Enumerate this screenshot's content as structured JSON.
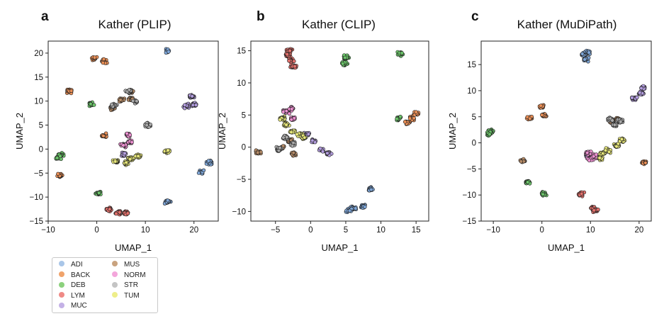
{
  "chart_data": [
    {
      "type": "scatter",
      "panel_label": "a",
      "title": "Kather (PLIP)",
      "xlabel": "UMAP_1",
      "ylabel": "UMAP_2",
      "xlim": [
        -10,
        25
      ],
      "ylim": [
        -15,
        22.5
      ],
      "xticks": [
        -10,
        0,
        10,
        20
      ],
      "yticks": [
        -15,
        -10,
        -5,
        0,
        5,
        10,
        15,
        20
      ],
      "clusters": [
        {
          "class": "ADI",
          "points": [
            [
              14.5,
              20.5
            ],
            [
              21.5,
              -4.8
            ],
            [
              23.2,
              -2.8
            ],
            [
              14.5,
              -11
            ]
          ]
        },
        {
          "class": "BACK",
          "points": [
            [
              -0.5,
              19.0
            ],
            [
              1.5,
              18.2
            ],
            [
              -5.8,
              12.0
            ],
            [
              -7.5,
              -5.5
            ],
            [
              1.5,
              2.8
            ]
          ]
        },
        {
          "class": "DEB",
          "points": [
            [
              -1.2,
              9.3
            ],
            [
              -8.0,
              -1.8
            ],
            [
              -7.2,
              -1.2
            ],
            [
              0.3,
              -9.2
            ]
          ]
        },
        {
          "class": "LYM",
          "points": [
            [
              2.5,
              -12.6
            ],
            [
              4.5,
              -13.2
            ],
            [
              6.0,
              -13.3
            ]
          ]
        },
        {
          "class": "MUC",
          "points": [
            [
              18.5,
              9.0
            ],
            [
              20.0,
              9.3
            ],
            [
              19.5,
              11.0
            ],
            [
              5.5,
              -1.0
            ]
          ]
        },
        {
          "class": "MUS",
          "points": [
            [
              5.0,
              10.3
            ],
            [
              7.0,
              10.4
            ],
            [
              3.2,
              8.5
            ],
            [
              7.0,
              12.0
            ]
          ]
        },
        {
          "class": "NORM",
          "points": [
            [
              6.5,
              3.0
            ],
            [
              6.8,
              1.5
            ],
            [
              5.5,
              0.8
            ]
          ]
        },
        {
          "class": "STR",
          "points": [
            [
              8.0,
              10.0
            ],
            [
              3.5,
              9.0
            ],
            [
              10.5,
              5.0
            ],
            [
              6.5,
              12.0
            ]
          ]
        },
        {
          "class": "TUM",
          "points": [
            [
              7.0,
              -2.0
            ],
            [
              8.5,
              -1.5
            ],
            [
              6.0,
              -3.0
            ],
            [
              4.0,
              -2.5
            ],
            [
              14.5,
              -0.5
            ]
          ]
        }
      ]
    },
    {
      "type": "scatter",
      "panel_label": "b",
      "title": "Kather (CLIP)",
      "xlabel": "UMAP_1",
      "ylabel": "UMAP_2",
      "xlim": [
        -8.5,
        16.8
      ],
      "ylim": [
        -11.5,
        16.5
      ],
      "xticks": [
        -5,
        0,
        5,
        10,
        15
      ],
      "yticks": [
        -10,
        -5,
        0,
        5,
        10,
        15
      ],
      "clusters": [
        {
          "class": "ADI",
          "points": [
            [
              6.0,
              -9.5
            ],
            [
              7.5,
              -9.2
            ],
            [
              5.5,
              -9.8
            ],
            [
              8.5,
              -6.5
            ]
          ]
        },
        {
          "class": "BACK",
          "points": [
            [
              14.5,
              4.5
            ],
            [
              15.0,
              5.2
            ],
            [
              13.8,
              3.8
            ]
          ]
        },
        {
          "class": "DEB",
          "points": [
            [
              5.0,
              14.0
            ],
            [
              4.8,
              13.0
            ],
            [
              12.8,
              14.5
            ],
            [
              12.5,
              4.5
            ]
          ]
        },
        {
          "class": "LYM",
          "points": [
            [
              -3.0,
              15.0
            ],
            [
              -2.8,
              13.5
            ],
            [
              -3.2,
              14.2
            ],
            [
              -2.5,
              12.5
            ]
          ]
        },
        {
          "class": "MUC",
          "points": [
            [
              1.5,
              -0.5
            ],
            [
              2.5,
              -1.0
            ],
            [
              0.5,
              1.0
            ],
            [
              -0.5,
              2.0
            ]
          ]
        },
        {
          "class": "MUS",
          "points": [
            [
              -4.0,
              0.0
            ],
            [
              -2.5,
              -1.0
            ],
            [
              -3.0,
              1.0
            ],
            [
              -7.5,
              -0.8
            ]
          ]
        },
        {
          "class": "NORM",
          "points": [
            [
              -3.5,
              5.5
            ],
            [
              -2.8,
              6.0
            ],
            [
              -2.5,
              4.5
            ]
          ]
        },
        {
          "class": "STR",
          "points": [
            [
              -4.5,
              -0.3
            ],
            [
              -3.5,
              1.5
            ],
            [
              -2.5,
              0.5
            ]
          ]
        },
        {
          "class": "TUM",
          "points": [
            [
              -3.5,
              3.5
            ],
            [
              -2.5,
              2.5
            ],
            [
              -4.0,
              4.5
            ],
            [
              -1.5,
              2.0
            ],
            [
              -1.0,
              1.5
            ]
          ]
        }
      ]
    },
    {
      "type": "scatter",
      "panel_label": "c",
      "title": "Kather (MuDiPath)",
      "xlabel": "UMAP_1",
      "ylabel": "UMAP_2",
      "xlim": [
        -12.5,
        22.5
      ],
      "ylim": [
        -15,
        19.5
      ],
      "xticks": [
        -10,
        0,
        10,
        20
      ],
      "yticks": [
        -15,
        -10,
        -5,
        0,
        5,
        10,
        15
      ],
      "clusters": [
        {
          "class": "ADI",
          "points": [
            [
              8.5,
              17.0
            ],
            [
              9.5,
              17.3
            ],
            [
              9.0,
              16.0
            ]
          ]
        },
        {
          "class": "BACK",
          "points": [
            [
              -2.5,
              4.8
            ],
            [
              0.0,
              7.0
            ],
            [
              0.5,
              5.2
            ],
            [
              21.0,
              -3.8
            ]
          ]
        },
        {
          "class": "DEB",
          "points": [
            [
              -10.5,
              2.2
            ],
            [
              -10.8,
              1.8
            ],
            [
              -3.0,
              -7.5
            ],
            [
              0.5,
              -9.8
            ]
          ]
        },
        {
          "class": "LYM",
          "points": [
            [
              8.0,
              -9.8
            ],
            [
              10.5,
              -12.5
            ],
            [
              11.0,
              -13.0
            ]
          ]
        },
        {
          "class": "MUC",
          "points": [
            [
              19.0,
              8.5
            ],
            [
              20.5,
              9.5
            ],
            [
              20.8,
              10.5
            ],
            [
              9.5,
              -2.5
            ]
          ]
        },
        {
          "class": "MUS",
          "points": [
            [
              -4.0,
              -3.5
            ],
            [
              14.5,
              4.0
            ],
            [
              15.5,
              4.5
            ]
          ]
        },
        {
          "class": "NORM",
          "points": [
            [
              9.5,
              -2.0
            ],
            [
              10.0,
              -3.0
            ],
            [
              11.0,
              -2.5
            ]
          ]
        },
        {
          "class": "STR",
          "points": [
            [
              14.0,
              4.5
            ],
            [
              16.0,
              4.2
            ],
            [
              15.0,
              3.5
            ]
          ]
        },
        {
          "class": "TUM",
          "points": [
            [
              12.5,
              -2.0
            ],
            [
              13.5,
              -1.5
            ],
            [
              12.0,
              -3.0
            ],
            [
              15.5,
              -0.5
            ],
            [
              16.5,
              0.5
            ]
          ]
        }
      ]
    }
  ],
  "legend": {
    "entries": [
      {
        "label": "ADI",
        "color": "#a9c6e8"
      },
      {
        "label": "BACK",
        "color": "#f0a36b"
      },
      {
        "label": "DEB",
        "color": "#8cd17d"
      },
      {
        "label": "LYM",
        "color": "#ef8a86"
      },
      {
        "label": "MUC",
        "color": "#c4b1e6"
      },
      {
        "label": "MUS",
        "color": "#c9a37f"
      },
      {
        "label": "NORM",
        "color": "#f3a6db"
      },
      {
        "label": "STR",
        "color": "#c4c4c4"
      },
      {
        "label": "TUM",
        "color": "#eeee8a"
      }
    ]
  },
  "colors": {
    "ADI": "#7ea6d8",
    "BACK": "#ea8f56",
    "DEB": "#6cc56a",
    "LYM": "#e4716c",
    "MUC": "#b39ddf",
    "MUS": "#b48a66",
    "NORM": "#ec8fd0",
    "STR": "#aaaaaa",
    "TUM": "#e6e679"
  }
}
